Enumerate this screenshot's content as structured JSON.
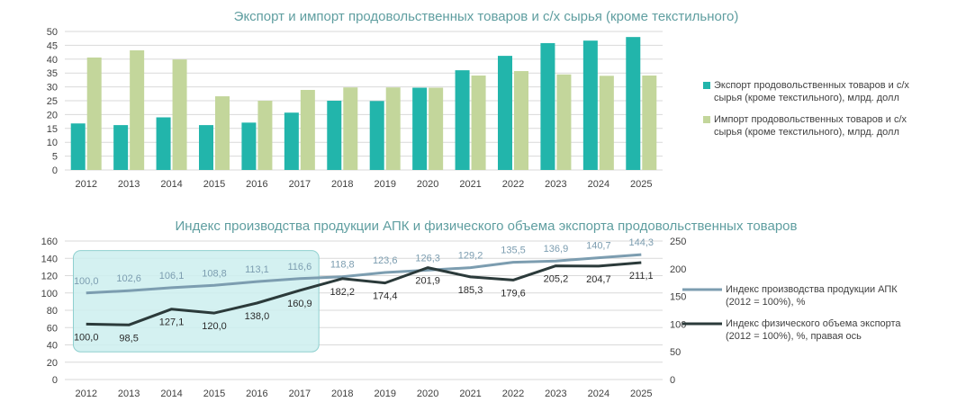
{
  "chart_data": [
    {
      "type": "bar",
      "title": "Экспорт и импорт продовольственных товаров и с/х сырья (кроме текстильного)",
      "categories": [
        "2012",
        "2013",
        "2014",
        "2015",
        "2016",
        "2017",
        "2018",
        "2019",
        "2020",
        "2021",
        "2022",
        "2023",
        "2024",
        "2025"
      ],
      "ylim": [
        0,
        50
      ],
      "yticks": [
        "0",
        "5",
        "10",
        "15",
        "20",
        "25",
        "30",
        "35",
        "40",
        "45",
        "50"
      ],
      "grid": true,
      "legend_position": "right",
      "series": [
        {
          "name": "Экспорт продовольственных товаров и с/х сырья (кроме текстильного), млрд. долл",
          "legend_lines": [
            "Экспорт продовольственных товаров и с/х",
            "сырья (кроме текстильного), млрд. долл"
          ],
          "color": "#22b5ab",
          "values": [
            16.8,
            16.2,
            19.0,
            16.2,
            17.1,
            20.7,
            25.0,
            24.9,
            29.7,
            36.0,
            41.2,
            45.8,
            46.7,
            48.0
          ]
        },
        {
          "name": "Импорт продовольственных товаров и с/х сырья (кроме текстильного), млрд. долл",
          "legend_lines": [
            "Импорт продовольственных товаров и с/х",
            "сырья (кроме текстильного), млрд. долл"
          ],
          "color": "#c3d69b",
          "values": [
            40.6,
            43.2,
            39.9,
            26.6,
            25.0,
            28.9,
            29.8,
            29.8,
            29.7,
            34.1,
            35.7,
            34.5,
            34.0,
            34.1
          ]
        }
      ]
    },
    {
      "type": "line",
      "title": "Индекс производства продукции АПК и физического объема экспорта продовольственных товаров",
      "categories": [
        "2012",
        "2013",
        "2014",
        "2015",
        "2016",
        "2017",
        "2018",
        "2019",
        "2020",
        "2021",
        "2022",
        "2023",
        "2024",
        "2025"
      ],
      "ylim": [
        0,
        160
      ],
      "yticks": [
        "0",
        "20",
        "40",
        "60",
        "80",
        "100",
        "120",
        "140",
        "160"
      ],
      "y2lim": [
        0,
        250
      ],
      "y2ticks": [
        "0",
        "50",
        "100",
        "150",
        "200",
        "250"
      ],
      "grid": true,
      "legend_position": "right",
      "highlight_range": [
        "2012",
        "2017"
      ],
      "highlight_color": "#cdeeee",
      "series": [
        {
          "name": "Индекс производства продукции АПК (2012 = 100%), %",
          "legend_lines": [
            "Индекс производства продукции АПК",
            "(2012 = 100%), %"
          ],
          "axis": "left",
          "color": "#7c9db0",
          "values": [
            100.0,
            102.6,
            106.1,
            108.8,
            113.1,
            116.6,
            118.8,
            123.6,
            126.3,
            129.2,
            135.5,
            136.9,
            140.7,
            144.3
          ],
          "labels": [
            "100,0",
            "102,6",
            "106,1",
            "108,8",
            "113,1",
            "116,6",
            "118,8",
            "123,6",
            "126,3",
            "129,2",
            "135,5",
            "136,9",
            "140,7",
            "144,3"
          ]
        },
        {
          "name": "Индекс физического объема экспорта (2012 = 100%), %, правая ось",
          "legend_lines": [
            "Индекс физического объема экспорта",
            "(2012 = 100%), %, правая ось"
          ],
          "axis": "right",
          "color": "#2b3a3a",
          "values": [
            100.0,
            98.5,
            127.1,
            120.0,
            138.0,
            160.9,
            182.2,
            174.4,
            201.9,
            185.3,
            179.6,
            205.2,
            204.7,
            211.1
          ],
          "labels": [
            "100,0",
            "98,5",
            "127,1",
            "120,0",
            "138,0",
            "160,9",
            "182,2",
            "174,4",
            "201,9",
            "185,3",
            "179,6",
            "205,2",
            "204,7",
            "211,1"
          ]
        }
      ]
    }
  ]
}
